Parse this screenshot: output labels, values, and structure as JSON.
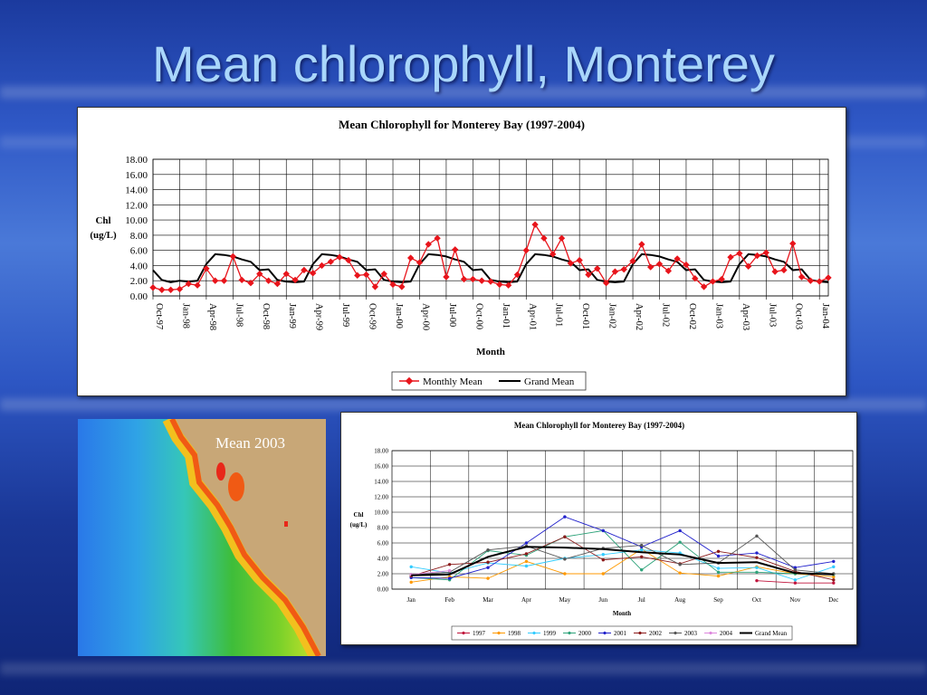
{
  "slide": {
    "title": "Mean chlorophyll, Monterey"
  },
  "map": {
    "label": "Mean 2003"
  },
  "colors": {
    "monthly": "#e8141b",
    "grand": "#000000"
  },
  "chart_data": [
    {
      "type": "line",
      "title": "Mean Chlorophyll for Monterey Bay (1997-2004)",
      "xlabel": "Month",
      "ylabel": [
        "Chl",
        "(ug/L)"
      ],
      "ylim": [
        0,
        18
      ],
      "yticks": [
        "0.00",
        "2.00",
        "4.00",
        "6.00",
        "8.00",
        "10.00",
        "12.00",
        "14.00",
        "16.00",
        "18.00"
      ],
      "grid": true,
      "legend": "bottom",
      "xticks": [
        "Oct-97",
        "Jan-98",
        "Apr-98",
        "Jul-98",
        "Oct-98",
        "Jan-99",
        "Apr-99",
        "Jul-99",
        "Oct-99",
        "Jan-00",
        "Apr-00",
        "Jul-00",
        "Oct-00",
        "Jan-01",
        "Apr-01",
        "Jul-01",
        "Oct-01",
        "Jan-02",
        "Apr-02",
        "Jul-02",
        "Oct-02",
        "Jan-03",
        "Apr-03",
        "Jul-03",
        "Oct-03",
        "Jan-04"
      ],
      "series": [
        {
          "name": "Monthly Mean",
          "values": [
            1.1,
            0.8,
            0.8,
            0.9,
            1.6,
            1.4,
            3.6,
            2.0,
            2.0,
            5.2,
            2.1,
            1.7,
            2.9,
            2.0,
            1.6,
            2.9,
            2.1,
            3.4,
            3.0,
            4.0,
            4.5,
            5.1,
            4.7,
            2.7,
            2.8,
            1.2,
            2.9,
            1.5,
            1.2,
            5.0,
            4.4,
            6.8,
            7.6,
            2.5,
            6.1,
            2.2,
            2.2,
            2.0,
            1.9,
            1.5,
            1.4,
            2.8,
            6.0,
            9.4,
            7.6,
            5.5,
            7.6,
            4.3,
            4.7,
            2.8,
            3.6,
            1.7,
            3.2,
            3.5,
            4.6,
            6.8,
            3.8,
            4.2,
            3.3,
            4.9,
            4.1,
            2.3,
            1.2,
            1.9,
            2.2,
            5.1,
            5.6,
            3.9,
            5.3,
            5.7,
            3.2,
            3.4,
            6.9,
            2.5,
            2.0,
            1.9,
            2.4
          ],
          "marker": "diamond"
        },
        {
          "name": "Grand Mean",
          "values": [
            3.4,
            2.1,
            1.8,
            2.0,
            1.9,
            2.0,
            4.2,
            5.5,
            5.4,
            5.2,
            4.8,
            4.5,
            3.4,
            3.5,
            2.1,
            1.9,
            1.8,
            1.9,
            4.2,
            5.5,
            5.4,
            5.2,
            4.8,
            4.5,
            3.4,
            3.5,
            2.1,
            1.9,
            1.8,
            1.9,
            4.2,
            5.5,
            5.4,
            5.2,
            4.8,
            4.5,
            3.4,
            3.5,
            2.1,
            1.9,
            1.8,
            1.9,
            4.2,
            5.5,
            5.4,
            5.2,
            4.8,
            4.5,
            3.4,
            3.5,
            2.1,
            1.9,
            1.8,
            1.9,
            4.2,
            5.5,
            5.4,
            5.2,
            4.8,
            4.5,
            3.4,
            3.5,
            2.1,
            1.9,
            1.8,
            1.9,
            4.2,
            5.5,
            5.4,
            5.2,
            4.8,
            4.5,
            3.4,
            3.5,
            2.1,
            1.9,
            1.8
          ],
          "marker": "none"
        }
      ]
    },
    {
      "type": "line",
      "title": "Mean Chlorophyll for Monterey Bay (1997-2004)",
      "xlabel": "Month",
      "ylabel": [
        "Chl",
        "(ug/L)"
      ],
      "ylim": [
        0,
        18
      ],
      "yticks": [
        "0.00",
        "2.00",
        "4.00",
        "6.00",
        "8.00",
        "10.00",
        "12.00",
        "14.00",
        "16.00",
        "18.00"
      ],
      "grid": true,
      "legend": "bottom",
      "categories": [
        "Jan",
        "Feb",
        "Mar",
        "Apr",
        "May",
        "Jun",
        "Jul",
        "Aug",
        "Sep",
        "Oct",
        "Nov",
        "Dec"
      ],
      "series": [
        {
          "name": "1997",
          "color": "#c0143c",
          "values": [
            null,
            null,
            null,
            null,
            null,
            null,
            null,
            null,
            null,
            1.1,
            0.8,
            0.8
          ]
        },
        {
          "name": "1998",
          "color": "#ff9900",
          "values": [
            0.9,
            1.6,
            1.4,
            3.6,
            2.0,
            2.0,
            5.2,
            2.1,
            1.7,
            2.9,
            2.0,
            1.6
          ]
        },
        {
          "name": "1999",
          "color": "#33ccff",
          "values": [
            2.9,
            2.1,
            3.4,
            3.0,
            4.0,
            4.5,
            5.1,
            4.7,
            2.7,
            2.8,
            1.2,
            2.9
          ]
        },
        {
          "name": "2000",
          "color": "#2ea37a",
          "values": [
            1.5,
            1.2,
            5.0,
            4.4,
            6.8,
            7.6,
            2.5,
            6.1,
            2.2,
            2.2,
            2.0,
            1.9
          ]
        },
        {
          "name": "2001",
          "color": "#2222cc",
          "values": [
            1.5,
            1.4,
            2.8,
            6.0,
            9.4,
            7.6,
            5.5,
            7.6,
            4.3,
            4.7,
            2.8,
            3.6
          ]
        },
        {
          "name": "2002",
          "color": "#8b1a1a",
          "values": [
            1.7,
            3.2,
            3.5,
            4.6,
            6.8,
            3.8,
            4.2,
            3.3,
            4.9,
            4.1,
            2.3,
            1.2
          ]
        },
        {
          "name": "2003",
          "color": "#555555",
          "values": [
            1.9,
            2.2,
            5.1,
            5.6,
            3.9,
            5.3,
            5.7,
            3.2,
            3.4,
            6.9,
            2.5,
            2.0
          ]
        },
        {
          "name": "2004",
          "color": "#dd88dd",
          "values": [
            1.9,
            2.4,
            null,
            null,
            null,
            null,
            null,
            null,
            null,
            null,
            null,
            null
          ]
        },
        {
          "name": "Grand Mean",
          "color": "#000000",
          "values": [
            1.8,
            1.9,
            4.2,
            5.5,
            5.4,
            5.2,
            4.8,
            4.5,
            3.4,
            3.5,
            2.1,
            1.9
          ]
        }
      ]
    }
  ]
}
